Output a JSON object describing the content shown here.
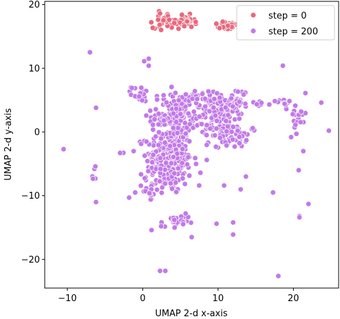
{
  "chart_data": {
    "type": "scatter",
    "xlabel": "UMAP 2-d x-axis",
    "ylabel": "UMAP 2-d y-axis",
    "xlim": [
      -13,
      26
    ],
    "ylim": [
      -24.5,
      20.5
    ],
    "xticks": [
      -10,
      0,
      10,
      20
    ],
    "yticks": [
      -20,
      -10,
      0,
      10,
      20
    ],
    "legend_position": "upper-right",
    "series": [
      {
        "name": "step = 0",
        "color": "#e8697d",
        "clusters": [
          {
            "cx": 3.0,
            "cy": 17.5,
            "sx": 0.8,
            "sy": 0.6,
            "n": 40
          },
          {
            "cx": 5.7,
            "cy": 17.3,
            "sx": 0.6,
            "sy": 0.5,
            "n": 30
          },
          {
            "cx": 11.3,
            "cy": 16.6,
            "sx": 0.6,
            "sy": 0.4,
            "n": 25
          }
        ],
        "points": [
          {
            "x": 2.3,
            "y": 18.6
          },
          {
            "x": 5.2,
            "y": 18.4
          },
          {
            "x": 4.2,
            "y": 17.1
          },
          {
            "x": 10.2,
            "y": 16.3
          }
        ]
      },
      {
        "name": "step = 200",
        "color": "#c27ae8",
        "clusters": [
          {
            "cx": 3.5,
            "cy": -4.5,
            "sx": 1.5,
            "sy": 2.6,
            "n": 260
          },
          {
            "cx": 4.0,
            "cy": 2.5,
            "sx": 1.4,
            "sy": 1.8,
            "n": 130
          },
          {
            "cx": 10.0,
            "cy": 2.5,
            "sx": 1.6,
            "sy": 1.8,
            "n": 150
          },
          {
            "cx": 11.8,
            "cy": -0.8,
            "sx": 1.0,
            "sy": 0.8,
            "n": 45
          },
          {
            "cx": 12.6,
            "cy": 4.8,
            "sx": 0.7,
            "sy": 1.0,
            "n": 30
          },
          {
            "cx": 7.3,
            "cy": 5.5,
            "sx": 1.0,
            "sy": 0.6,
            "n": 25
          },
          {
            "cx": -0.3,
            "cy": 6.0,
            "sx": 0.6,
            "sy": 0.6,
            "n": 20
          },
          {
            "cx": 4.2,
            "cy": -14.3,
            "sx": 0.9,
            "sy": 0.6,
            "n": 25
          },
          {
            "cx": 20.5,
            "cy": 1.8,
            "sx": 0.6,
            "sy": 1.6,
            "n": 20
          },
          {
            "cx": 18.5,
            "cy": 4.7,
            "sx": 0.9,
            "sy": 0.3,
            "n": 10
          },
          {
            "cx": 15.5,
            "cy": 4.3,
            "sx": 0.4,
            "sy": 0.3,
            "n": 6
          },
          {
            "cx": -6.5,
            "cy": -6.5,
            "sx": 0.3,
            "sy": 0.5,
            "n": 5
          },
          {
            "cx": 0.8,
            "cy": -9.0,
            "sx": 0.8,
            "sy": 1.0,
            "n": 15
          }
        ],
        "points": [
          {
            "x": -10.5,
            "y": -2.7
          },
          {
            "x": -7.0,
            "y": 12.5
          },
          {
            "x": -6.2,
            "y": 3.8
          },
          {
            "x": -6.2,
            "y": -11.0
          },
          {
            "x": -3.0,
            "y": -3.3
          },
          {
            "x": -1.8,
            "y": -10.3
          },
          {
            "x": -1.0,
            "y": -9.5
          },
          {
            "x": -1.2,
            "y": -3.0
          },
          {
            "x": 0.2,
            "y": 11.1
          },
          {
            "x": 0.8,
            "y": 11.5
          },
          {
            "x": 0.5,
            "y": -1.5
          },
          {
            "x": 0.8,
            "y": 10.4
          },
          {
            "x": 2.3,
            "y": -21.8
          },
          {
            "x": 3.0,
            "y": -21.8
          },
          {
            "x": 4.2,
            "y": -6.5
          },
          {
            "x": 4.2,
            "y": -13.8
          },
          {
            "x": 5.7,
            "y": -12.8
          },
          {
            "x": 6.5,
            "y": -16.5
          },
          {
            "x": 7.5,
            "y": -8.4
          },
          {
            "x": 8.5,
            "y": -4.4
          },
          {
            "x": 9.8,
            "y": -14.4
          },
          {
            "x": 10.8,
            "y": -8.4
          },
          {
            "x": 12.0,
            "y": -16.1
          },
          {
            "x": 12.0,
            "y": -14.2
          },
          {
            "x": 13.0,
            "y": -9.0
          },
          {
            "x": 13.7,
            "y": -7.0
          },
          {
            "x": 14.6,
            "y": 0.6
          },
          {
            "x": 16.8,
            "y": 4.3
          },
          {
            "x": 17.3,
            "y": -9.5
          },
          {
            "x": 18.0,
            "y": -22.6
          },
          {
            "x": 18.6,
            "y": 10.4
          },
          {
            "x": 19.7,
            "y": -0.8
          },
          {
            "x": 20.7,
            "y": -6.0
          },
          {
            "x": 20.8,
            "y": -13.2
          },
          {
            "x": 20.8,
            "y": -13.4
          },
          {
            "x": 21.6,
            "y": 6.1
          },
          {
            "x": 22.0,
            "y": -11.3
          },
          {
            "x": 23.7,
            "y": 4.6
          },
          {
            "x": 24.7,
            "y": 0.2
          }
        ]
      }
    ]
  }
}
